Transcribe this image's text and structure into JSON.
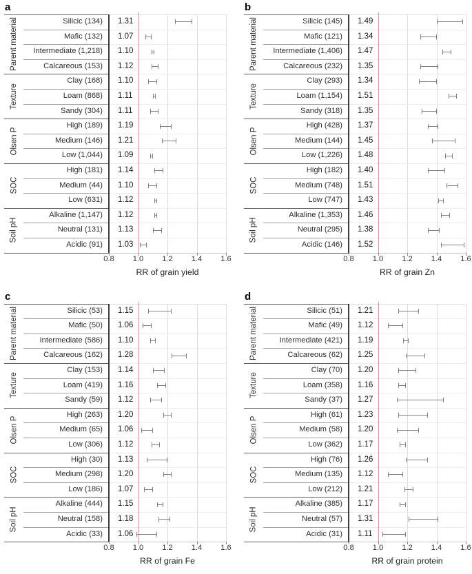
{
  "figure": {
    "description": "Four forest plots of response ratios (RR) by soil factor subgroup",
    "colors": {
      "reference_line": "#f08c8c",
      "error_bar": "#7e7e7e",
      "gridline": "#dcdcdc",
      "row_line": "#ececec",
      "label_divider": "#3c3c3c",
      "text": "#2e2e2e",
      "background": "#ffffff"
    }
  },
  "chart_data": [
    {
      "letter": "a",
      "type": "forest",
      "xlabel": "RR of grain yield",
      "xlim": [
        0.8,
        1.6
      ],
      "ref_line": 1.0,
      "x_ticks": [
        0.8,
        1.0,
        1.2,
        1.4,
        1.6
      ],
      "x_tick_labels": [
        "0.8",
        "1.0",
        "1.2",
        "1.4",
        "1.6"
      ],
      "grid": true,
      "groups": [
        {
          "name": "Parent material",
          "items": [
            {
              "label": "Silicic (134)",
              "rr": "1.31",
              "lo": 1.25,
              "hi": 1.37
            },
            {
              "label": "Mafic (132)",
              "rr": "1.07",
              "lo": 1.05,
              "hi": 1.09
            },
            {
              "label": "Intermediate (1,218)",
              "rr": "1.10",
              "lo": 1.09,
              "hi": 1.11
            },
            {
              "label": "Calcareous (153)",
              "rr": "1.12",
              "lo": 1.09,
              "hi": 1.14
            }
          ]
        },
        {
          "name": "Texture",
          "items": [
            {
              "label": "Clay (168)",
              "rr": "1.10",
              "lo": 1.07,
              "hi": 1.13
            },
            {
              "label": "Loam (868)",
              "rr": "1.11",
              "lo": 1.1,
              "hi": 1.12
            },
            {
              "label": "Sandy (304)",
              "rr": "1.11",
              "lo": 1.08,
              "hi": 1.14
            }
          ]
        },
        {
          "name": "Olsen P",
          "items": [
            {
              "label": "High (189)",
              "rr": "1.19",
              "lo": 1.15,
              "hi": 1.23
            },
            {
              "label": "Medium (146)",
              "rr": "1.21",
              "lo": 1.16,
              "hi": 1.26
            },
            {
              "label": "Low (1,044)",
              "rr": "1.09",
              "lo": 1.08,
              "hi": 1.1
            }
          ]
        },
        {
          "name": "SOC",
          "items": [
            {
              "label": "High (181)",
              "rr": "1.14",
              "lo": 1.11,
              "hi": 1.17
            },
            {
              "label": "Medium (44)",
              "rr": "1.10",
              "lo": 1.07,
              "hi": 1.13
            },
            {
              "label": "Low (631)",
              "rr": "1.12",
              "lo": 1.11,
              "hi": 1.13
            }
          ]
        },
        {
          "name": "Soil pH",
          "items": [
            {
              "label": "Alkaline (1,147)",
              "rr": "1.12",
              "lo": 1.11,
              "hi": 1.13
            },
            {
              "label": "Neutral (131)",
              "rr": "1.13",
              "lo": 1.1,
              "hi": 1.16
            },
            {
              "label": "Acidic (91)",
              "rr": "1.03",
              "lo": 1.01,
              "hi": 1.06
            }
          ]
        }
      ]
    },
    {
      "letter": "b",
      "type": "forest",
      "xlabel": "RR of grain Zn",
      "xlim": [
        0.8,
        1.6
      ],
      "ref_line": 1.0,
      "x_ticks": [
        0.8,
        1.0,
        1.2,
        1.4,
        1.6
      ],
      "x_tick_labels": [
        "0.8",
        "1.0",
        "1.2",
        "1.4",
        "1.6"
      ],
      "grid": true,
      "groups": [
        {
          "name": "Parent material",
          "items": [
            {
              "label": "Silicic (145)",
              "rr": "1.49",
              "lo": 1.4,
              "hi": 1.58
            },
            {
              "label": "Mafic (121)",
              "rr": "1.34",
              "lo": 1.29,
              "hi": 1.4
            },
            {
              "label": "Intermediate (1,406)",
              "rr": "1.47",
              "lo": 1.44,
              "hi": 1.5
            },
            {
              "label": "Calcareous (232)",
              "rr": "1.35",
              "lo": 1.29,
              "hi": 1.41
            }
          ]
        },
        {
          "name": "Texture",
          "items": [
            {
              "label": "Clay (293)",
              "rr": "1.34",
              "lo": 1.28,
              "hi": 1.4
            },
            {
              "label": "Loam (1,154)",
              "rr": "1.51",
              "lo": 1.48,
              "hi": 1.54
            },
            {
              "label": "Sandy (318)",
              "rr": "1.35",
              "lo": 1.3,
              "hi": 1.4
            }
          ]
        },
        {
          "name": "Olsen P",
          "items": [
            {
              "label": "High (428)",
              "rr": "1.37",
              "lo": 1.34,
              "hi": 1.41
            },
            {
              "label": "Medium (144)",
              "rr": "1.45",
              "lo": 1.37,
              "hi": 1.53
            },
            {
              "label": "Low (1,226)",
              "rr": "1.48",
              "lo": 1.46,
              "hi": 1.51
            }
          ]
        },
        {
          "name": "SOC",
          "items": [
            {
              "label": "High (182)",
              "rr": "1.40",
              "lo": 1.34,
              "hi": 1.46
            },
            {
              "label": "Medium (748)",
              "rr": "1.51",
              "lo": 1.47,
              "hi": 1.55
            },
            {
              "label": "Low (747)",
              "rr": "1.43",
              "lo": 1.41,
              "hi": 1.45
            }
          ]
        },
        {
          "name": "Soil pH",
          "items": [
            {
              "label": "Alkaline (1,353)",
              "rr": "1.46",
              "lo": 1.43,
              "hi": 1.49
            },
            {
              "label": "Neutral (295)",
              "rr": "1.38",
              "lo": 1.34,
              "hi": 1.42
            },
            {
              "label": "Acidic (146)",
              "rr": "1.52",
              "lo": 1.43,
              "hi": 1.59
            }
          ]
        }
      ]
    },
    {
      "letter": "c",
      "type": "forest",
      "xlabel": "RR of grain Fe",
      "xlim": [
        0.8,
        1.6
      ],
      "ref_line": 1.0,
      "x_ticks": [
        0.8,
        1.0,
        1.2,
        1.4,
        1.6
      ],
      "x_tick_labels": [
        "0.8",
        "1.0",
        "1.2",
        "1.4",
        "1.6"
      ],
      "grid": true,
      "groups": [
        {
          "name": "Parent material",
          "items": [
            {
              "label": "Silicic (53)",
              "rr": "1.15",
              "lo": 1.07,
              "hi": 1.23
            },
            {
              "label": "Mafic (50)",
              "rr": "1.06",
              "lo": 1.03,
              "hi": 1.09
            },
            {
              "label": "Intermediate (586)",
              "rr": "1.10",
              "lo": 1.08,
              "hi": 1.12
            },
            {
              "label": "Calcareous (162)",
              "rr": "1.28",
              "lo": 1.23,
              "hi": 1.33
            }
          ]
        },
        {
          "name": "Texture",
          "items": [
            {
              "label": "Clay (153)",
              "rr": "1.14",
              "lo": 1.1,
              "hi": 1.18
            },
            {
              "label": "Loam (419)",
              "rr": "1.16",
              "lo": 1.13,
              "hi": 1.19
            },
            {
              "label": "Sandy (59)",
              "rr": "1.12",
              "lo": 1.08,
              "hi": 1.16
            }
          ]
        },
        {
          "name": "Olsen P",
          "items": [
            {
              "label": "High (263)",
              "rr": "1.20",
              "lo": 1.17,
              "hi": 1.23
            },
            {
              "label": "Medium (65)",
              "rr": "1.06",
              "lo": 1.02,
              "hi": 1.1
            },
            {
              "label": "Low (306)",
              "rr": "1.12",
              "lo": 1.09,
              "hi": 1.15
            }
          ]
        },
        {
          "name": "SOC",
          "items": [
            {
              "label": "High (30)",
              "rr": "1.13",
              "lo": 1.06,
              "hi": 1.2
            },
            {
              "label": "Medium (298)",
              "rr": "1.20",
              "lo": 1.17,
              "hi": 1.23
            },
            {
              "label": "Low (186)",
              "rr": "1.07",
              "lo": 1.04,
              "hi": 1.1
            }
          ]
        },
        {
          "name": "Soil pH",
          "items": [
            {
              "label": "Alkaline (444)",
              "rr": "1.15",
              "lo": 1.13,
              "hi": 1.17
            },
            {
              "label": "Neutral (158)",
              "rr": "1.18",
              "lo": 1.14,
              "hi": 1.22
            },
            {
              "label": "Acidic (33)",
              "rr": "1.06",
              "lo": 0.99,
              "hi": 1.13
            }
          ]
        }
      ]
    },
    {
      "letter": "d",
      "type": "forest",
      "xlabel": "RR of grain protein",
      "xlim": [
        0.8,
        1.6
      ],
      "ref_line": 1.0,
      "x_ticks": [
        0.8,
        1.0,
        1.2,
        1.4,
        1.6
      ],
      "x_tick_labels": [
        "0.8",
        "1.0",
        "1.2",
        "1.4",
        "1.6"
      ],
      "grid": true,
      "groups": [
        {
          "name": "Parent material",
          "items": [
            {
              "label": "Silicic (51)",
              "rr": "1.21",
              "lo": 1.14,
              "hi": 1.28
            },
            {
              "label": "Mafic (49)",
              "rr": "1.12",
              "lo": 1.07,
              "hi": 1.17
            },
            {
              "label": "Intermediate (421)",
              "rr": "1.19",
              "lo": 1.17,
              "hi": 1.21
            },
            {
              "label": "Calcareous (62)",
              "rr": "1.25",
              "lo": 1.19,
              "hi": 1.32
            }
          ]
        },
        {
          "name": "Texture",
          "items": [
            {
              "label": "Clay (70)",
              "rr": "1.20",
              "lo": 1.14,
              "hi": 1.26
            },
            {
              "label": "Loam (358)",
              "rr": "1.16",
              "lo": 1.14,
              "hi": 1.19
            },
            {
              "label": "Sandy (37)",
              "rr": "1.27",
              "lo": 1.13,
              "hi": 1.45
            }
          ]
        },
        {
          "name": "Olsen P",
          "items": [
            {
              "label": "High (61)",
              "rr": "1.23",
              "lo": 1.14,
              "hi": 1.34
            },
            {
              "label": "Medium (58)",
              "rr": "1.20",
              "lo": 1.13,
              "hi": 1.28
            },
            {
              "label": "Low (362)",
              "rr": "1.17",
              "lo": 1.15,
              "hi": 1.19
            }
          ]
        },
        {
          "name": "SOC",
          "items": [
            {
              "label": "High (76)",
              "rr": "1.26",
              "lo": 1.19,
              "hi": 1.34
            },
            {
              "label": "Medium (135)",
              "rr": "1.12",
              "lo": 1.07,
              "hi": 1.17
            },
            {
              "label": "Low (212)",
              "rr": "1.21",
              "lo": 1.18,
              "hi": 1.24
            }
          ]
        },
        {
          "name": "Soil pH",
          "items": [
            {
              "label": "Alkaline (385)",
              "rr": "1.17",
              "lo": 1.15,
              "hi": 1.19
            },
            {
              "label": "Neutral (57)",
              "rr": "1.31",
              "lo": 1.21,
              "hi": 1.41
            },
            {
              "label": "Acidic (31)",
              "rr": "1.11",
              "lo": 1.03,
              "hi": 1.19
            }
          ]
        }
      ]
    }
  ]
}
